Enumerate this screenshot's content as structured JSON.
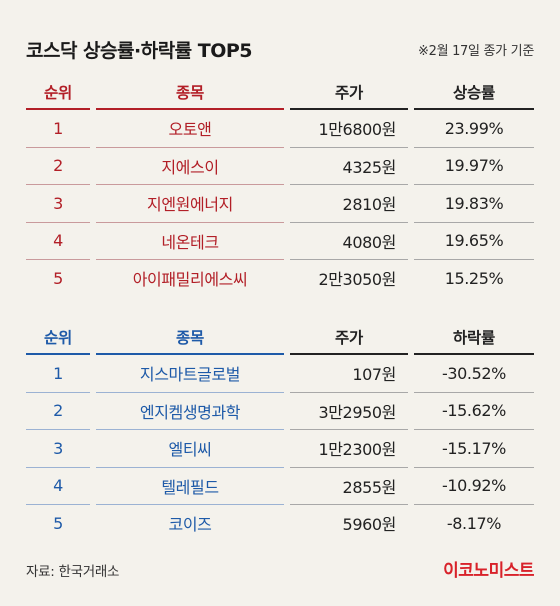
{
  "title": "코스닥 상승률·하락률 TOP5",
  "basis": "※2월 17일 종가 기준",
  "rise": {
    "headers": {
      "rank": "순위",
      "name": "종목",
      "price": "주가",
      "rate": "상승률"
    },
    "rows": [
      {
        "rank": "1",
        "name": "오토앤",
        "price": "1만6800원",
        "rate": "23.99%"
      },
      {
        "rank": "2",
        "name": "지에스이",
        "price": "4325원",
        "rate": "19.97%"
      },
      {
        "rank": "3",
        "name": "지엔원에너지",
        "price": "2810원",
        "rate": "19.83%"
      },
      {
        "rank": "4",
        "name": "네온테크",
        "price": "4080원",
        "rate": "19.65%"
      },
      {
        "rank": "5",
        "name": "아이패밀리에스씨",
        "price": "2만3050원",
        "rate": "15.25%"
      }
    ]
  },
  "fall": {
    "headers": {
      "rank": "순위",
      "name": "종목",
      "price": "주가",
      "rate": "하락률"
    },
    "rows": [
      {
        "rank": "1",
        "name": "지스마트글로벌",
        "price": "107원",
        "rate": "-30.52%"
      },
      {
        "rank": "2",
        "name": "엔지켐생명과학",
        "price": "3만2950원",
        "rate": "-15.62%"
      },
      {
        "rank": "3",
        "name": "엘티씨",
        "price": "1만2300원",
        "rate": "-15.17%"
      },
      {
        "rank": "4",
        "name": "텔레필드",
        "price": "2855원",
        "rate": "-10.92%"
      },
      {
        "rank": "5",
        "name": "코이즈",
        "price": "5960원",
        "rate": "-8.17%"
      }
    ]
  },
  "source": "자료: 한국거래소",
  "logo": "이코노미스트",
  "colors": {
    "rise": "#b21f27",
    "fall": "#1e5aa8",
    "background": "#f4f2ec"
  }
}
